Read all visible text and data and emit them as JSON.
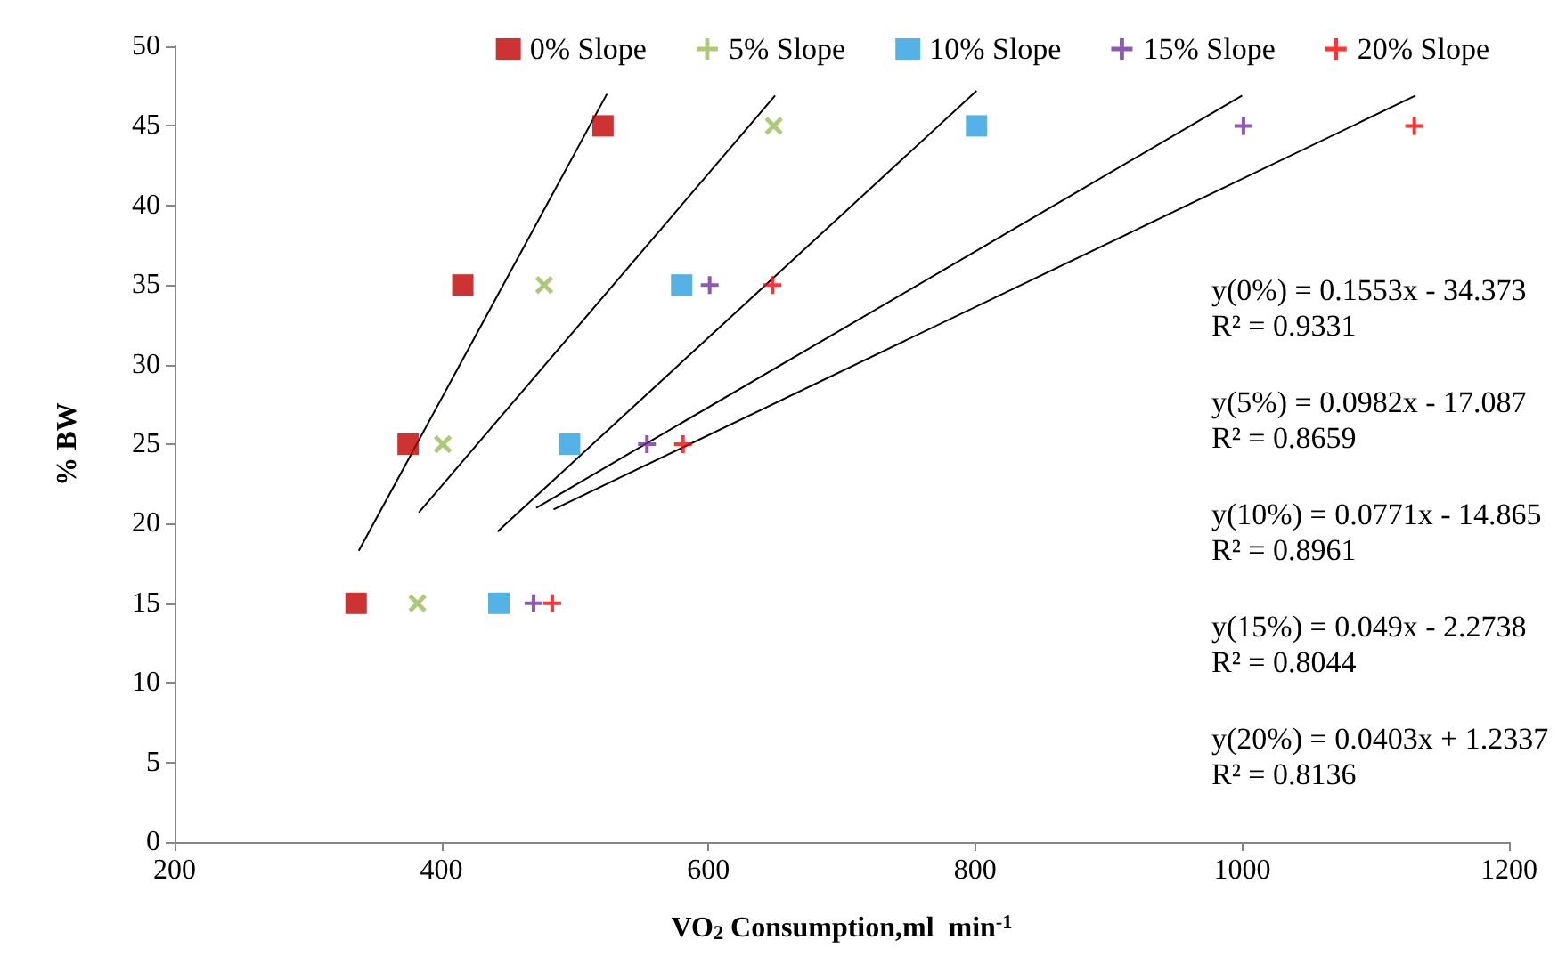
{
  "chart_data": {
    "type": "scatter",
    "xlabel": "VO$_{2}$ Consumption,ml  min$^{-1}$",
    "ylabel": "% BW",
    "xlim": [
      200,
      1200
    ],
    "xticks": [
      200,
      400,
      600,
      800,
      1000,
      1200
    ],
    "ylim": [
      0,
      50
    ],
    "yticks": [
      0,
      5,
      10,
      15,
      20,
      25,
      30,
      35,
      40,
      45,
      50
    ],
    "grid": false,
    "legend": "top right",
    "series": [
      {
        "name": "0% Slope",
        "color": "#c00000",
        "marker": "square",
        "x": [
          336,
          375,
          416,
          521
        ],
        "values": [
          15,
          25,
          35,
          45
        ]
      },
      {
        "name": "5% Slope",
        "color": "#9bbb59",
        "marker": "cross",
        "x": [
          382,
          401,
          477,
          649
        ],
        "values": [
          15,
          25,
          35,
          45
        ]
      },
      {
        "name": "10% Slope",
        "color": "#2a9fe0",
        "marker": "square",
        "x": [
          443,
          496,
          580,
          801
        ],
        "values": [
          15,
          25,
          35,
          45
        ]
      },
      {
        "name": "15% Slope",
        "color": "#7030a0",
        "x": [
          469,
          554,
          601,
          1001
        ],
        "values": [
          15,
          25,
          35,
          45
        ]
      },
      {
        "name": "20% Slope",
        "color": "#ff0000",
        "x": [
          483,
          581,
          648,
          1129
        ],
        "values": [
          15,
          25,
          35,
          45
        ]
      },
      {
        "type": "line",
        "color": "#000000",
        "marker": "none",
        "x": [
          338,
          524
        ],
        "values": [
          18.3,
          47.0
        ]
      },
      {
        "type": "line",
        "color": "#000000",
        "marker": "none",
        "x": [
          383,
          650
        ],
        "values": [
          20.7,
          46.9
        ]
      },
      {
        "type": "line",
        "color": "#000000",
        "marker": "none",
        "x": [
          442,
          801
        ],
        "values": [
          19.5,
          47.2
        ]
      },
      {
        "type": "line",
        "color": "#000000",
        "marker": "none",
        "x": [
          471,
          1000
        ],
        "values": [
          21.0,
          46.9
        ]
      },
      {
        "type": "line",
        "color": "#000000",
        "marker": "none",
        "x": [
          484,
          1130
        ],
        "values": [
          20.9,
          46.9
        ]
      }
    ],
    "annotations": [
      "y(0%) = 0.1553x - 34.373\nR² = 0.9331",
      "y(5%) = 0.0982x - 17.087\nR² = 0.8659",
      "y(10%) = 0.0771x - 14.865\nR² = 0.8961",
      "y(15%) = 0.049x - 2.2738\nR² = 0.8044",
      "y(20%) = 0.0403x + 1.2337\nR² = 0.8136"
    ]
  }
}
